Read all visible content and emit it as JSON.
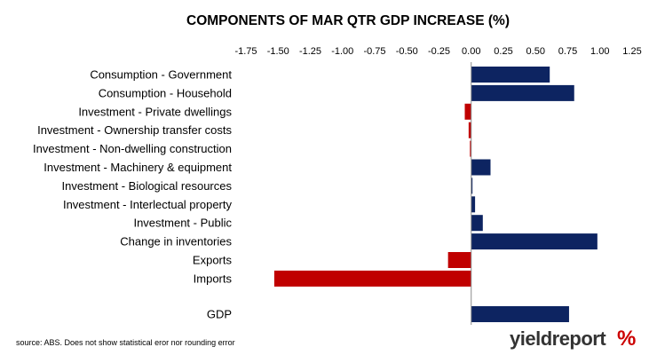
{
  "chart_data": {
    "type": "bar",
    "orientation": "horizontal",
    "title": "COMPONENTS OF MAR QTR GDP INCREASE (%)",
    "xlim": [
      -1.75,
      1.25
    ],
    "x_ticks": [
      "-1.75",
      "-1.50",
      "-1.25",
      "-1.00",
      "-0.75",
      "-0.50",
      "-0.25",
      "0.00",
      "0.25",
      "0.50",
      "0.75",
      "1.00",
      "1.25"
    ],
    "x_tick_values": [
      -1.75,
      -1.5,
      -1.25,
      -1.0,
      -0.75,
      -0.5,
      -0.25,
      0.0,
      0.25,
      0.5,
      0.75,
      1.0,
      1.25
    ],
    "x_axis_position": "top",
    "grid": false,
    "categories": [
      "Consumption - Government",
      "Consumption - Household",
      "Investment - Private dwellings",
      "Investment - Ownership transfer costs",
      "Investment - Non-dwelling construction",
      "Investment - Machinery & equipment",
      "Investment - Biological resources",
      "Investment - Interlectual property",
      "Investment - Public",
      "Change in inventories",
      "Exports",
      "Imports",
      "GDP"
    ],
    "values": [
      0.61,
      0.8,
      -0.05,
      -0.02,
      -0.01,
      0.15,
      0.01,
      0.03,
      0.09,
      0.98,
      -0.18,
      -1.53,
      0.76
    ],
    "colors": {
      "positive": "#0d2461",
      "negative": "#c00000"
    }
  },
  "footer": {
    "source": "source: ABS. Does not show statistical eror nor rounding error",
    "brand_word": "yieldreport",
    "brand_symbol": "%"
  }
}
